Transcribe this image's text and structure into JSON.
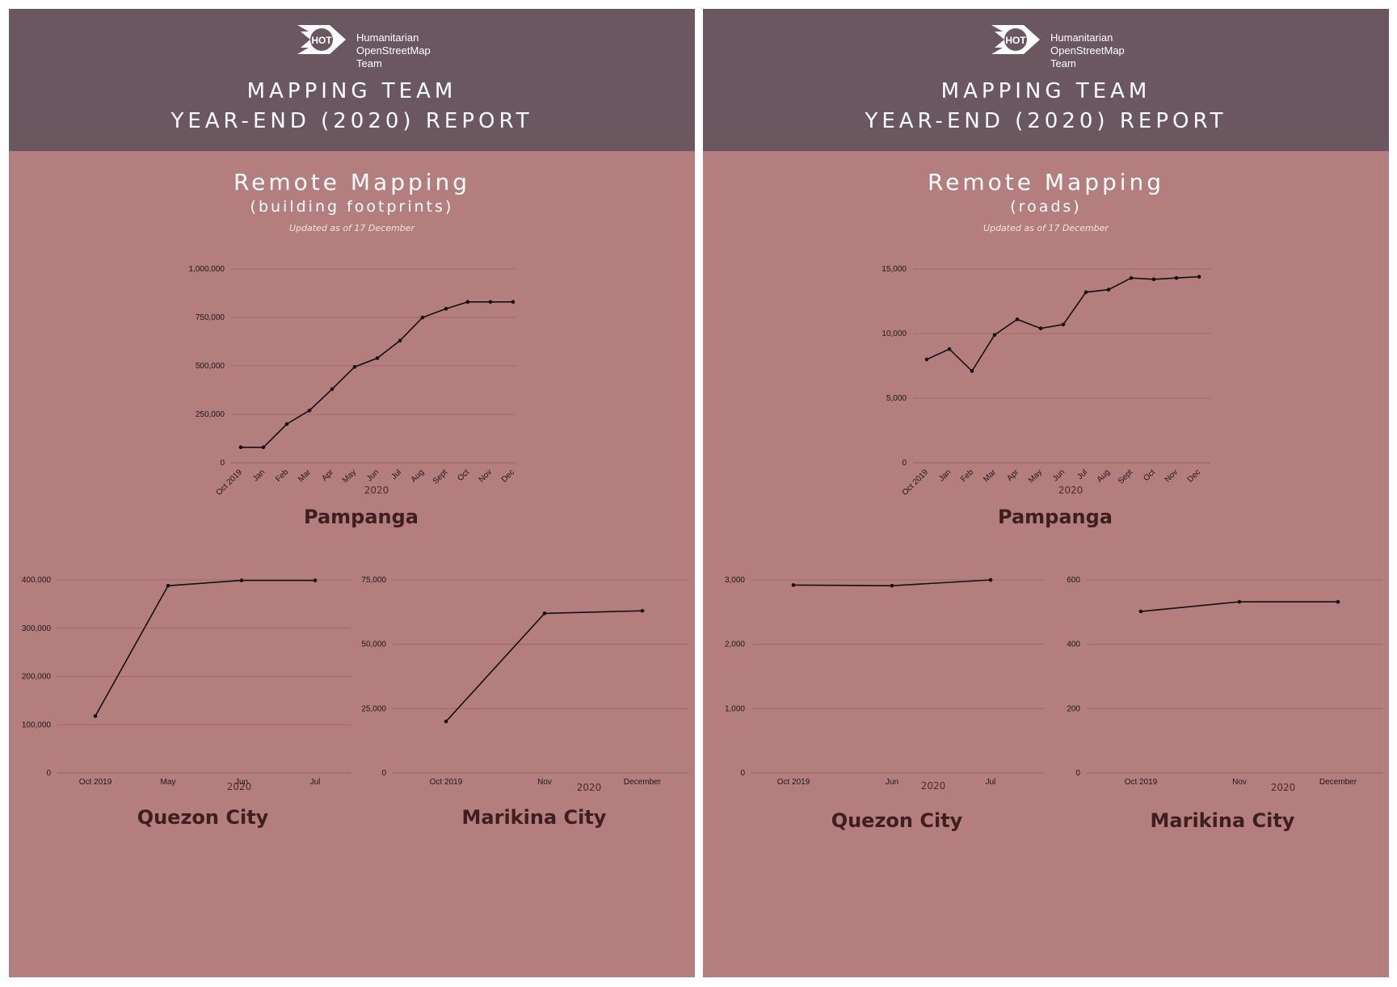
{
  "brand": {
    "logo_badge": "HOT",
    "logo_lines": [
      "Humanitarian",
      "OpenStreetMap",
      "Team"
    ]
  },
  "report": {
    "title_line1": "MAPPING TEAM",
    "title_line2": "YEAR-END (2020) REPORT"
  },
  "updated_note": "Updated as of 17 December",
  "colors": {
    "header": "#6b5760",
    "panel": "#b47e7e",
    "line": "#111111",
    "grid": "#9c6a6a",
    "chart_title": "#3e1f1f"
  },
  "panels": [
    {
      "title": "Remote Mapping",
      "subtitle": "(building footprints)",
      "updated": "Updated as of 17 December"
    },
    {
      "title": "Remote Mapping",
      "subtitle": "(roads)",
      "updated": "Updated as of 17 December"
    }
  ],
  "chart_data": [
    {
      "type": "line",
      "title": "Pampanga",
      "xlabel": "2020",
      "categories": [
        "Oct 2019",
        "Jan",
        "Feb",
        "Mar",
        "Apr",
        "May",
        "Jun",
        "Jul",
        "Aug",
        "Sept",
        "Oct",
        "Nov",
        "Dec"
      ],
      "values": [
        80000,
        80000,
        200000,
        270000,
        380000,
        495000,
        540000,
        630000,
        750000,
        795000,
        830000,
        830000,
        830000
      ],
      "ylim": [
        0,
        1000000
      ],
      "yticks": [
        0,
        250000,
        500000,
        750000,
        1000000
      ],
      "ytick_labels": [
        "0",
        "250,000",
        "500,000",
        "750,000",
        "1,000,000"
      ]
    },
    {
      "type": "line",
      "title": "Quezon City",
      "xlabel": "2020",
      "categories": [
        "Oct 2019",
        "May",
        "Jun",
        "Jul"
      ],
      "values": [
        118000,
        388000,
        399000,
        399000
      ],
      "ylim": [
        0,
        400000
      ],
      "yticks": [
        0,
        100000,
        200000,
        300000,
        400000
      ],
      "ytick_labels": [
        "0",
        "100,000",
        "200,000",
        "300,000",
        "400,000"
      ]
    },
    {
      "type": "line",
      "title": "Marikina City",
      "xlabel": "2020",
      "categories": [
        "Oct 2019",
        "Nov",
        "December"
      ],
      "values": [
        20000,
        62000,
        63000
      ],
      "ylim": [
        0,
        75000
      ],
      "yticks": [
        0,
        25000,
        50000,
        75000
      ],
      "ytick_labels": [
        "0",
        "25,000",
        "50,000",
        "75,000"
      ]
    },
    {
      "type": "line",
      "title": "Pampanga",
      "xlabel": "2020",
      "categories": [
        "Oct 2019",
        "Jan",
        "Feb",
        "Mar",
        "Apr",
        "May",
        "Jun",
        "Jul",
        "Aug",
        "Sept",
        "Oct",
        "Nov",
        "Dec"
      ],
      "values": [
        8000,
        8800,
        7100,
        9900,
        11100,
        10400,
        10700,
        13200,
        13400,
        14300,
        14200,
        14300,
        14400
      ],
      "ylim": [
        0,
        15000
      ],
      "yticks": [
        0,
        5000,
        10000,
        15000
      ],
      "ytick_labels": [
        "0",
        "5,000",
        "10,000",
        "15,000"
      ]
    },
    {
      "type": "line",
      "title": "Quezon City",
      "xlabel": "2020",
      "categories": [
        "Oct 2019",
        "Jun",
        "Jul"
      ],
      "values": [
        2920,
        2910,
        3000
      ],
      "ylim": [
        0,
        3000
      ],
      "yticks": [
        0,
        1000,
        2000,
        3000
      ],
      "ytick_labels": [
        "0",
        "1,000",
        "2,000",
        "3,000"
      ]
    },
    {
      "type": "line",
      "title": "Marikina City",
      "xlabel": "2020",
      "categories": [
        "Oct 2019",
        "Nov",
        "December"
      ],
      "values": [
        502,
        532,
        532
      ],
      "ylim": [
        0,
        600
      ],
      "yticks": [
        0,
        200,
        400,
        600
      ],
      "ytick_labels": [
        "0",
        "200",
        "400",
        "600"
      ]
    }
  ]
}
